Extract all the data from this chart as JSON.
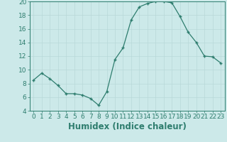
{
  "x": [
    0,
    1,
    2,
    3,
    4,
    5,
    6,
    7,
    8,
    9,
    10,
    11,
    12,
    13,
    14,
    15,
    16,
    17,
    18,
    19,
    20,
    21,
    22,
    23
  ],
  "y": [
    8.5,
    9.5,
    8.7,
    7.7,
    6.5,
    6.5,
    6.3,
    5.8,
    4.8,
    6.8,
    11.5,
    13.2,
    17.3,
    19.2,
    19.7,
    20.0,
    20.0,
    19.8,
    17.8,
    15.5,
    14.0,
    12.0,
    11.9,
    11.0
  ],
  "line_color": "#2e7d6e",
  "marker": "+",
  "background_color": "#cce9e9",
  "grid_color": "#b8d8d8",
  "xlabel": "Humidex (Indice chaleur)",
  "ylim": [
    4,
    20
  ],
  "xlim_min": -0.5,
  "xlim_max": 23.5,
  "yticks": [
    4,
    6,
    8,
    10,
    12,
    14,
    16,
    18,
    20
  ],
  "xticks": [
    0,
    1,
    2,
    3,
    4,
    5,
    6,
    7,
    8,
    9,
    10,
    11,
    12,
    13,
    14,
    15,
    16,
    17,
    18,
    19,
    20,
    21,
    22,
    23
  ],
  "font_color": "#2e7d6e",
  "tick_fontsize": 6.5,
  "xlabel_fontsize": 8.5
}
